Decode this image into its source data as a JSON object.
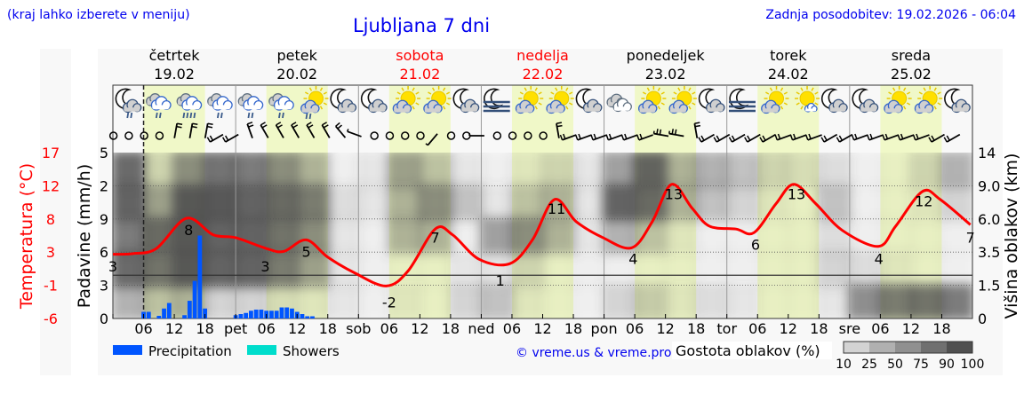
{
  "header": {
    "location_hint": "(kraj lahko izberete v meniju)",
    "title": "Ljubljana 7 dni",
    "updated": "Zadnja posodobitev: 19.02.2026 - 06:04"
  },
  "days": [
    {
      "name": "četrtek",
      "date": "19.02",
      "weekend": false
    },
    {
      "name": "petek",
      "date": "20.02",
      "weekend": false
    },
    {
      "name": "sobota",
      "date": "21.02",
      "weekend": true
    },
    {
      "name": "nedelja",
      "date": "22.02",
      "weekend": true
    },
    {
      "name": "ponedeljek",
      "date": "23.02",
      "weekend": false
    },
    {
      "name": "torek",
      "date": "24.02",
      "weekend": false
    },
    {
      "name": "sreda",
      "date": "25.02",
      "weekend": false
    }
  ],
  "x_tick_labels": [
    "",
    "06",
    "12",
    "18",
    "pet",
    "06",
    "12",
    "18",
    "sob",
    "06",
    "12",
    "18",
    "ned",
    "06",
    "12",
    "18",
    "pon",
    "06",
    "12",
    "18",
    "tor",
    "06",
    "12",
    "18",
    "sre",
    "06",
    "12",
    "18"
  ],
  "axes": {
    "temperature_label": "Temperatura (°C)",
    "temperature_ticks": [
      "17",
      "12",
      "8",
      "3",
      "-1",
      "-6"
    ],
    "precip_label": "Padavine (mm/h)",
    "precip_ticks": [
      "5",
      "2",
      "9",
      "6",
      "3",
      "0"
    ],
    "cloud_height_label": "Višina oblakov (km)",
    "cloud_height_ticks": [
      "14",
      "9.0",
      "6.0",
      "3.5",
      "1.5",
      "0"
    ]
  },
  "legend": {
    "precipitation": "Precipitation",
    "showers": "Showers",
    "copyright": "© vreme.us & vreme.pro",
    "cloud_density": "Gostota oblakov (%)",
    "cloud_density_steps": [
      "10",
      "25",
      "50",
      "75",
      "90",
      "100"
    ]
  },
  "colors": {
    "title": "#0000ee",
    "weekend": "#ff0000",
    "temperature": "#ff0000",
    "precipitation": "#0055ff",
    "showers": "#00ddcc",
    "daylight": "#f0f8c8",
    "cloud": "#505050"
  },
  "weather_icons": [
    "moon-cloud-light-rain",
    "cloud-rain",
    "cloud-heavy-rain",
    "cloud-rain",
    "cloud-rain",
    "cloud-rain",
    "sun-cloud-light-rain",
    "moon-cloud",
    "moon-cloud",
    "sun-cloud",
    "sun-cloud",
    "moon-cloud",
    "moon-fog",
    "sun-cloud",
    "sun-cloud",
    "moon-cloud",
    "overcast",
    "sun-cloud",
    "sun-cloud",
    "moon-cloud",
    "moon-fog",
    "sun-cloud",
    "sun-small-cloud",
    "moon-cloud",
    "moon-cloud",
    "sun-cloud",
    "sun-cloud",
    "moon-cloud"
  ],
  "chart_data": {
    "type": "line",
    "x_unit": "hours from 19.02 00:00",
    "now_hour": 6,
    "xlim": [
      0,
      168
    ],
    "temperature_ylim": [
      -6,
      17
    ],
    "precip_ylim": [
      0,
      15
    ],
    "temperature": [
      [
        0,
        2.9
      ],
      [
        4,
        3.0
      ],
      [
        8.5,
        3.7
      ],
      [
        14.4,
        7.9
      ],
      [
        19.6,
        5.6
      ],
      [
        24,
        5.2
      ],
      [
        30,
        3.7
      ],
      [
        33.4,
        3.3
      ],
      [
        37.8,
        4.9
      ],
      [
        42,
        2.5
      ],
      [
        47.3,
        0.3
      ],
      [
        53.4,
        -1.5
      ],
      [
        57.7,
        0.6
      ],
      [
        63,
        6.4
      ],
      [
        66.4,
        5.6
      ],
      [
        71.6,
        2.2
      ],
      [
        77.6,
        1.6
      ],
      [
        82,
        4.9
      ],
      [
        86.3,
        10.5
      ],
      [
        90.6,
        7.4
      ],
      [
        95.8,
        5.2
      ],
      [
        101.4,
        3.8
      ],
      [
        105.4,
        7.4
      ],
      [
        109.2,
        12.6
      ],
      [
        113.2,
        9.3
      ],
      [
        116.6,
        6.8
      ],
      [
        121.8,
        6.4
      ],
      [
        125.3,
        5.9
      ],
      [
        129.6,
        9.9
      ],
      [
        133.1,
        12.6
      ],
      [
        137.4,
        9.9
      ],
      [
        142.6,
        6.2
      ],
      [
        149.6,
        4.0
      ],
      [
        153,
        6.8
      ],
      [
        158.2,
        11.6
      ],
      [
        161.7,
        10.5
      ],
      [
        167.6,
        7.0
      ]
    ],
    "temperature_labels": [
      [
        0,
        "3"
      ],
      [
        14.8,
        "8"
      ],
      [
        29.8,
        "3"
      ],
      [
        37.8,
        "5"
      ],
      [
        54,
        "-2"
      ],
      [
        63,
        "7"
      ],
      [
        75.7,
        "1"
      ],
      [
        86.7,
        "11"
      ],
      [
        101.7,
        "4"
      ],
      [
        109.6,
        "13"
      ],
      [
        125.6,
        "6"
      ],
      [
        133.6,
        "13"
      ],
      [
        149.7,
        "4"
      ],
      [
        158.5,
        "12"
      ],
      [
        167.6,
        "7"
      ]
    ],
    "precipitation": [
      [
        6,
        0.6
      ],
      [
        7,
        0.6
      ],
      [
        9,
        0.24
      ],
      [
        10,
        0.9
      ],
      [
        11,
        1.4
      ],
      [
        14,
        0.3
      ],
      [
        15,
        1.6
      ],
      [
        16,
        3.4
      ],
      [
        17,
        7.5
      ],
      [
        18,
        0.9
      ],
      [
        24,
        0.3
      ],
      [
        25,
        0.4
      ],
      [
        26,
        0.5
      ],
      [
        27,
        0.7
      ],
      [
        28,
        0.8
      ],
      [
        29,
        0.8
      ],
      [
        30,
        0.7
      ],
      [
        31,
        0.7
      ],
      [
        32,
        0.7
      ],
      [
        33,
        1.0
      ],
      [
        34,
        1.0
      ],
      [
        35,
        0.9
      ],
      [
        36,
        0.6
      ],
      [
        37,
        0.4
      ],
      [
        38,
        0.2
      ],
      [
        39,
        0.2
      ]
    ],
    "showers": [],
    "cloud_height_bands_km": [
      "0-1.5",
      "1.5-3.5",
      "3.5-6",
      "6-9",
      "9-14"
    ],
    "cloud_density_6h": [
      [
        40,
        80,
        70,
        85,
        80
      ],
      [
        30,
        75,
        80,
        50,
        20
      ],
      [
        40,
        90,
        90,
        90,
        60
      ],
      [
        20,
        85,
        85,
        90,
        75
      ],
      [
        20,
        85,
        85,
        85,
        70
      ],
      [
        15,
        70,
        75,
        80,
        60
      ],
      [
        10,
        50,
        60,
        70,
        40
      ],
      [
        10,
        10,
        10,
        15,
        5
      ],
      [
        5,
        5,
        5,
        10,
        10
      ],
      [
        10,
        5,
        40,
        40,
        50
      ],
      [
        5,
        5,
        40,
        60,
        30
      ],
      [
        20,
        10,
        5,
        30,
        10
      ],
      [
        30,
        10,
        50,
        10,
        5
      ],
      [
        10,
        20,
        60,
        30,
        10
      ],
      [
        5,
        5,
        40,
        40,
        20
      ],
      [
        5,
        5,
        10,
        10,
        10
      ],
      [
        20,
        5,
        40,
        85,
        50
      ],
      [
        25,
        5,
        30,
        80,
        85
      ],
      [
        10,
        5,
        10,
        40,
        40
      ],
      [
        15,
        5,
        5,
        30,
        40
      ],
      [
        10,
        5,
        5,
        20,
        30
      ],
      [
        5,
        5,
        5,
        10,
        20
      ],
      [
        5,
        5,
        5,
        5,
        15
      ],
      [
        10,
        20,
        15,
        30,
        15
      ],
      [
        60,
        15,
        5,
        5,
        5
      ],
      [
        70,
        10,
        5,
        5,
        5
      ],
      [
        75,
        5,
        5,
        10,
        20
      ],
      [
        70,
        5,
        5,
        20,
        40
      ]
    ],
    "wind_3h_dir_deg_speed_kt": [
      [
        0,
        0
      ],
      [
        0,
        0
      ],
      [
        0,
        0
      ],
      [
        0,
        0
      ],
      [
        10,
        10
      ],
      [
        10,
        10
      ],
      [
        10,
        10
      ],
      [
        240,
        10
      ],
      [
        240,
        10
      ],
      [
        340,
        10
      ],
      [
        330,
        10
      ],
      [
        330,
        10
      ],
      [
        330,
        10
      ],
      [
        330,
        10
      ],
      [
        330,
        10
      ],
      [
        320,
        10
      ],
      [
        290,
        5
      ],
      [
        0,
        0
      ],
      [
        0,
        0
      ],
      [
        0,
        0
      ],
      [
        0,
        0
      ],
      [
        220,
        5
      ],
      [
        0,
        0
      ],
      [
        0,
        0
      ],
      [
        270,
        5
      ],
      [
        0,
        0
      ],
      [
        0,
        0
      ],
      [
        0,
        0
      ],
      [
        0,
        0
      ],
      [
        350,
        10
      ],
      [
        250,
        10
      ],
      [
        250,
        10
      ],
      [
        250,
        10
      ],
      [
        250,
        10
      ],
      [
        250,
        10
      ],
      [
        250,
        10
      ],
      [
        280,
        15
      ],
      [
        280,
        15
      ],
      [
        350,
        10
      ],
      [
        240,
        10
      ],
      [
        240,
        10
      ],
      [
        240,
        10
      ],
      [
        240,
        10
      ],
      [
        240,
        10
      ],
      [
        250,
        10
      ],
      [
        250,
        10
      ],
      [
        250,
        10
      ],
      [
        240,
        10
      ],
      [
        240,
        10
      ],
      [
        250,
        10
      ],
      [
        250,
        10
      ],
      [
        250,
        10
      ],
      [
        250,
        10
      ],
      [
        250,
        10
      ],
      [
        240,
        10
      ],
      [
        240,
        10
      ]
    ]
  }
}
